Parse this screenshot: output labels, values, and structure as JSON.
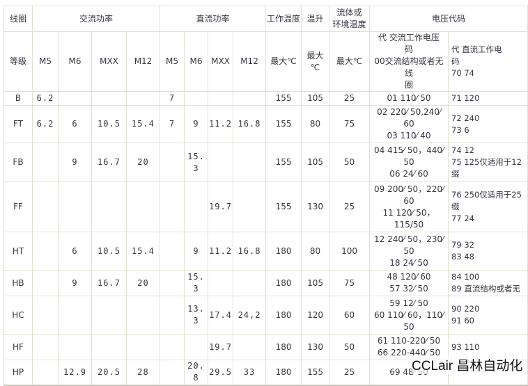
{
  "header1": {
    "coil": "线圈",
    "ac_power": "交流功率",
    "dc_power": "直流功率",
    "work_temp": "工作温度",
    "temp_rise": "温升",
    "fluid_temp": "流体或\n环境温度",
    "voltage_code": "电压代码"
  },
  "header2": {
    "grade": "等级",
    "ac": [
      "M5",
      "M6",
      "MXX",
      "M12"
    ],
    "dc": [
      "M5",
      "M6",
      "MXX",
      "M12"
    ],
    "work_temp_max": "最大℃",
    "temp_rise_max": "最大\n℃",
    "fluid_max": "最大℃",
    "ac_code": "代  交流工作电压\n码\n00交流结构或者无线\n圈",
    "dc_code": "代    直流工作电\n码\n70  74"
  },
  "rows": [
    {
      "grade": "B",
      "ac": [
        "6.2",
        "",
        "",
        ""
      ],
      "dc": [
        "7",
        "",
        "",
        ""
      ],
      "work_temp": "155",
      "temp_rise": "105",
      "fluid": "25",
      "ac_code": "01 110⁄ 50",
      "dc_code": "71  120"
    },
    {
      "grade": "FT",
      "ac": [
        "6.2",
        "6",
        "10.5",
        "15.4"
      ],
      "dc": [
        "7",
        "9",
        "11.2",
        "16.8"
      ],
      "work_temp": "155",
      "temp_rise": "80",
      "fluid": "75",
      "ac_code": "02 220⁄ 50,240⁄\n60\n03 110⁄ 40",
      "dc_code": "72  240\n73  6"
    },
    {
      "grade": "FB",
      "ac": [
        "",
        "9",
        "16.7",
        "20"
      ],
      "dc": [
        "",
        "15.\n3",
        "",
        ""
      ],
      "work_temp": "155",
      "temp_rise": "105",
      "fluid": "50",
      "ac_code": "04 415⁄ 50，440⁄\n50\n06 24⁄ 60",
      "dc_code": "74  12\n75  125仅适用于12\n缀"
    },
    {
      "grade": "FF",
      "ac": [
        "",
        "",
        "",
        ""
      ],
      "dc": [
        "",
        "",
        "19.7",
        ""
      ],
      "work_temp": "155",
      "temp_rise": "130",
      "fluid": "25",
      "ac_code": "09 200⁄ 50，220⁄\n60\n11 120⁄ 50，\n115/50",
      "dc_code": "76  250仅适用于25\n缀\n77  24"
    },
    {
      "grade": "HT",
      "ac": [
        "",
        "6",
        "10.5",
        "15.4"
      ],
      "dc": [
        "",
        "9",
        "11.2",
        "16.8"
      ],
      "work_temp": "180",
      "temp_rise": "80",
      "fluid": "100",
      "ac_code": "12 240⁄ 50，230⁄\n50\n18 24⁄ 50",
      "dc_code": "79  32\n83  48"
    },
    {
      "grade": "HB",
      "ac": [
        "",
        "9",
        "16.7",
        "20"
      ],
      "dc": [
        "",
        "15.\n3",
        "",
        ""
      ],
      "work_temp": "180",
      "temp_rise": "105",
      "fluid": "75",
      "ac_code": "48 120⁄ 60\n57 32⁄ 50",
      "dc_code": "84  100\n89  直流结构或者无"
    },
    {
      "grade": "HC",
      "ac": [
        "",
        "",
        "",
        ""
      ],
      "dc": [
        "",
        "13.\n3",
        "17.4",
        "24,2"
      ],
      "work_temp": "180",
      "temp_rise": "120",
      "fluid": "60",
      "ac_code": "59 12⁄ 50\n60 110⁄ 60，110⁄\n50",
      "dc_code": "90  220\n91  60"
    },
    {
      "grade": "HF",
      "ac": [
        "",
        "",
        "",
        ""
      ],
      "dc": [
        "",
        "",
        "19.7",
        ""
      ],
      "work_temp": "180",
      "temp_rise": "130",
      "fluid": "50",
      "ac_code": "61 110-220⁄ 50\n66 220-440⁄ 50",
      "dc_code": "93  110"
    },
    {
      "grade": "HP",
      "ac": [
        "",
        "12.9",
        "20.5",
        "28"
      ],
      "dc": [
        "",
        "20.\n8",
        "29.5",
        "33"
      ],
      "work_temp": "180",
      "temp_rise": "155",
      "fluid": "25",
      "ac_code": "69 48⁄ 50",
      "dc_code": ""
    }
  ],
  "watermark": "CCLair 昌林自动化"
}
